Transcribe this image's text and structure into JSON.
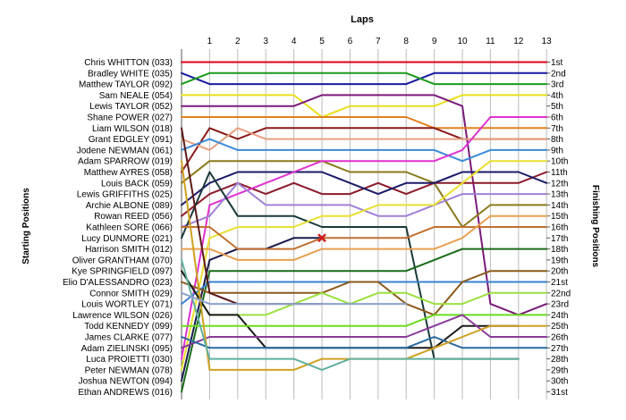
{
  "chart_data": {
    "type": "line",
    "title": "Laps",
    "ylabel_left": "Starting Positions",
    "ylabel_right": "Finishing Positions",
    "laps": [
      1,
      2,
      3,
      4,
      5,
      6,
      7,
      8,
      9,
      10,
      11,
      12,
      13
    ],
    "starting_labels": [
      "Chris WHITTON (033)",
      "Bradley WHITE (035)",
      "Matthew TAYLOR (092)",
      "Sam NEALE (054)",
      "Lewis TAYLOR (052)",
      "Shane POWER (027)",
      "Liam WILSON (018)",
      "Grant EDGLEY (091)",
      "Jodene NEWMAN (061)",
      "Adam SPARROW (019)",
      "Matthew AYRES (058)",
      "Louis BACK (059)",
      "Lewis GRIFFITHS (025)",
      "Archie ALBONE (089)",
      "Rowan REED (056)",
      "Kathleen SORE (066)",
      "Lucy DUNMORE (021)",
      "Harrison SMITH (012)",
      "Oliver GRANTHAM (070)",
      "Kye SPRINGFIELD (097)",
      "Elio D'ALESSANDRO (023)",
      "Connor SMITH (029)",
      "Louis WORTLEY (071)",
      "Lawrence WILSON (026)",
      "Todd KENNEDY (099)",
      "James CLARKE (077)",
      "Adam ZIELINSKI (095)",
      "Luca PROIETTI (030)",
      "Peter NEWMAN (078)",
      "Joshua NEWTON (094)",
      "Ethan ANDREWS (016)"
    ],
    "finishing_labels": [
      "1st",
      "2nd",
      "3rd",
      "4th",
      "5th",
      "6th",
      "7th",
      "8th",
      "9th",
      "10th",
      "11th",
      "12th",
      "13th",
      "14th",
      "15th",
      "16th",
      "17th",
      "18th",
      "19th",
      "20th",
      "21st",
      "22nd",
      "23rd",
      "24th",
      "25th",
      "26th",
      "27th",
      "28th",
      "29th",
      "30th",
      "31st"
    ],
    "y_range": [
      1,
      31
    ],
    "x_range": [
      0,
      13
    ],
    "grid": "vertical",
    "series": [
      {
        "color": "#e0001a",
        "positions": [
          1,
          1,
          1,
          1,
          1,
          1,
          1,
          1,
          1,
          1,
          1,
          1,
          1,
          1
        ]
      },
      {
        "color": "#1a1aa0",
        "positions": [
          2,
          3,
          3,
          3,
          3,
          3,
          3,
          3,
          3,
          2,
          2,
          2,
          2,
          2
        ]
      },
      {
        "color": "#1a9a1a",
        "positions": [
          3,
          2,
          2,
          2,
          2,
          2,
          2,
          2,
          2,
          3,
          3,
          3,
          3,
          3
        ]
      },
      {
        "color": "#e8e01a",
        "positions": [
          4,
          4,
          4,
          4,
          4,
          6,
          5,
          5,
          5,
          5,
          4,
          4,
          4,
          4
        ]
      },
      {
        "color": "#7a1a7a",
        "positions": [
          5,
          5,
          5,
          5,
          5,
          4,
          4,
          4,
          4,
          4,
          5,
          23,
          24,
          23
        ]
      },
      {
        "color": "#e08020",
        "positions": [
          6,
          6,
          6,
          6,
          6,
          6,
          6,
          6,
          6,
          7,
          7,
          7,
          7,
          7
        ]
      },
      {
        "color": "#8a1a1a",
        "positions": [
          11,
          7,
          8,
          7,
          7,
          7,
          7,
          7,
          7,
          7,
          8,
          8,
          8,
          8
        ]
      },
      {
        "color": "#e8a080",
        "positions": [
          8,
          9,
          7,
          8,
          8,
          8,
          8,
          8,
          8,
          8,
          8,
          8,
          8,
          8
        ]
      },
      {
        "color": "#3a8ad8",
        "positions": [
          9,
          8,
          9,
          9,
          9,
          9,
          9,
          9,
          9,
          9,
          10,
          9,
          9,
          9
        ]
      },
      {
        "color": "#8a7a1a",
        "positions": [
          12,
          10,
          10,
          10,
          10,
          10,
          11,
          11,
          11,
          12,
          16,
          14,
          14,
          14
        ]
      },
      {
        "color": "#8a1a2a",
        "positions": [
          15,
          13,
          12,
          13,
          12,
          13,
          13,
          12,
          13,
          12,
          12,
          12,
          12,
          11
        ]
      },
      {
        "color": "#1a1a6a",
        "positions": [
          14,
          12,
          11,
          11,
          11,
          11,
          12,
          13,
          12,
          12,
          11,
          11,
          11,
          12
        ]
      },
      {
        "color": "#e030d0",
        "positions": [
          28,
          14,
          13,
          12,
          11,
          10,
          10,
          10,
          10,
          10,
          9,
          6,
          6,
          6
        ]
      },
      {
        "color": "#a080d8",
        "positions": [
          16,
          15,
          12,
          14,
          14,
          14,
          14,
          15,
          15,
          14,
          13,
          13,
          13,
          13
        ]
      },
      {
        "color": "#1a3a3a",
        "positions": [
          17,
          11,
          15,
          15,
          15,
          16,
          16,
          16,
          16,
          28,
          28,
          28,
          28
        ]
      },
      {
        "color": "#e8e030",
        "positions": [
          29,
          17,
          16,
          16,
          16,
          15,
          15,
          14,
          14,
          14,
          12,
          10,
          10,
          10
        ]
      },
      {
        "color": "#1a1a4a",
        "positions": [
          30,
          19,
          18,
          18,
          17,
          17
        ]
      },
      {
        "color": "#c07030",
        "positions": [
          16,
          16,
          18,
          18,
          18,
          17,
          17,
          17,
          17,
          16,
          16,
          16,
          16,
          16
        ]
      },
      {
        "color": "#e8a050",
        "positions": [
          18,
          18,
          19,
          19,
          19,
          18,
          18,
          18,
          18,
          18,
          17,
          15,
          15,
          15
        ]
      },
      {
        "color": "#1a6a1a",
        "positions": [
          31,
          20,
          20,
          20,
          20,
          20,
          20,
          20,
          20,
          19,
          18,
          18,
          18,
          18
        ]
      },
      {
        "color": "#3a80d0",
        "positions": [
          23,
          21,
          21,
          21,
          21,
          21,
          21,
          21,
          21,
          21,
          21,
          21,
          21,
          21
        ]
      },
      {
        "color": "#8a5a1a",
        "positions": [
          21,
          22,
          22,
          22,
          22,
          22,
          21,
          21,
          23,
          24,
          21,
          20,
          20,
          20
        ]
      },
      {
        "color": "#9ae040",
        "positions": [
          20,
          24,
          24,
          24,
          23,
          22,
          23,
          22,
          22,
          23,
          23,
          22,
          22,
          22
        ]
      },
      {
        "color": "#1a1a1a",
        "positions": [
          20,
          24,
          24,
          27,
          27,
          27,
          27,
          27,
          27,
          27,
          25,
          25,
          25
        ]
      },
      {
        "color": "#6adc20",
        "positions": [
          25,
          25,
          25,
          25,
          25,
          25,
          25,
          25,
          25,
          24,
          24,
          24,
          24,
          24
        ]
      },
      {
        "color": "#8a3a9a",
        "positions": [
          27,
          26,
          26,
          26,
          26,
          26,
          26,
          26,
          26,
          25,
          24,
          26,
          26,
          26
        ]
      },
      {
        "color": "#2a6aa0",
        "positions": [
          26,
          27,
          27,
          27,
          27,
          27,
          27,
          27,
          27,
          26,
          27,
          27,
          27,
          27
        ]
      },
      {
        "color": "#d0a020",
        "positions": [
          10,
          29,
          29,
          29,
          29,
          28,
          28,
          28,
          28,
          27,
          26,
          25,
          25,
          25
        ]
      },
      {
        "color": "#60b0a0",
        "positions": [
          19,
          28,
          28,
          28,
          28,
          29,
          28,
          28,
          28,
          28,
          28,
          28,
          28
        ]
      },
      {
        "color": "#5a1a1a",
        "positions": [
          7,
          22,
          23,
          23,
          23,
          23
        ]
      },
      {
        "color": "#8aa0d0",
        "positions": [
          22,
          23,
          23,
          23,
          23,
          23,
          23,
          23,
          23
        ]
      }
    ]
  }
}
